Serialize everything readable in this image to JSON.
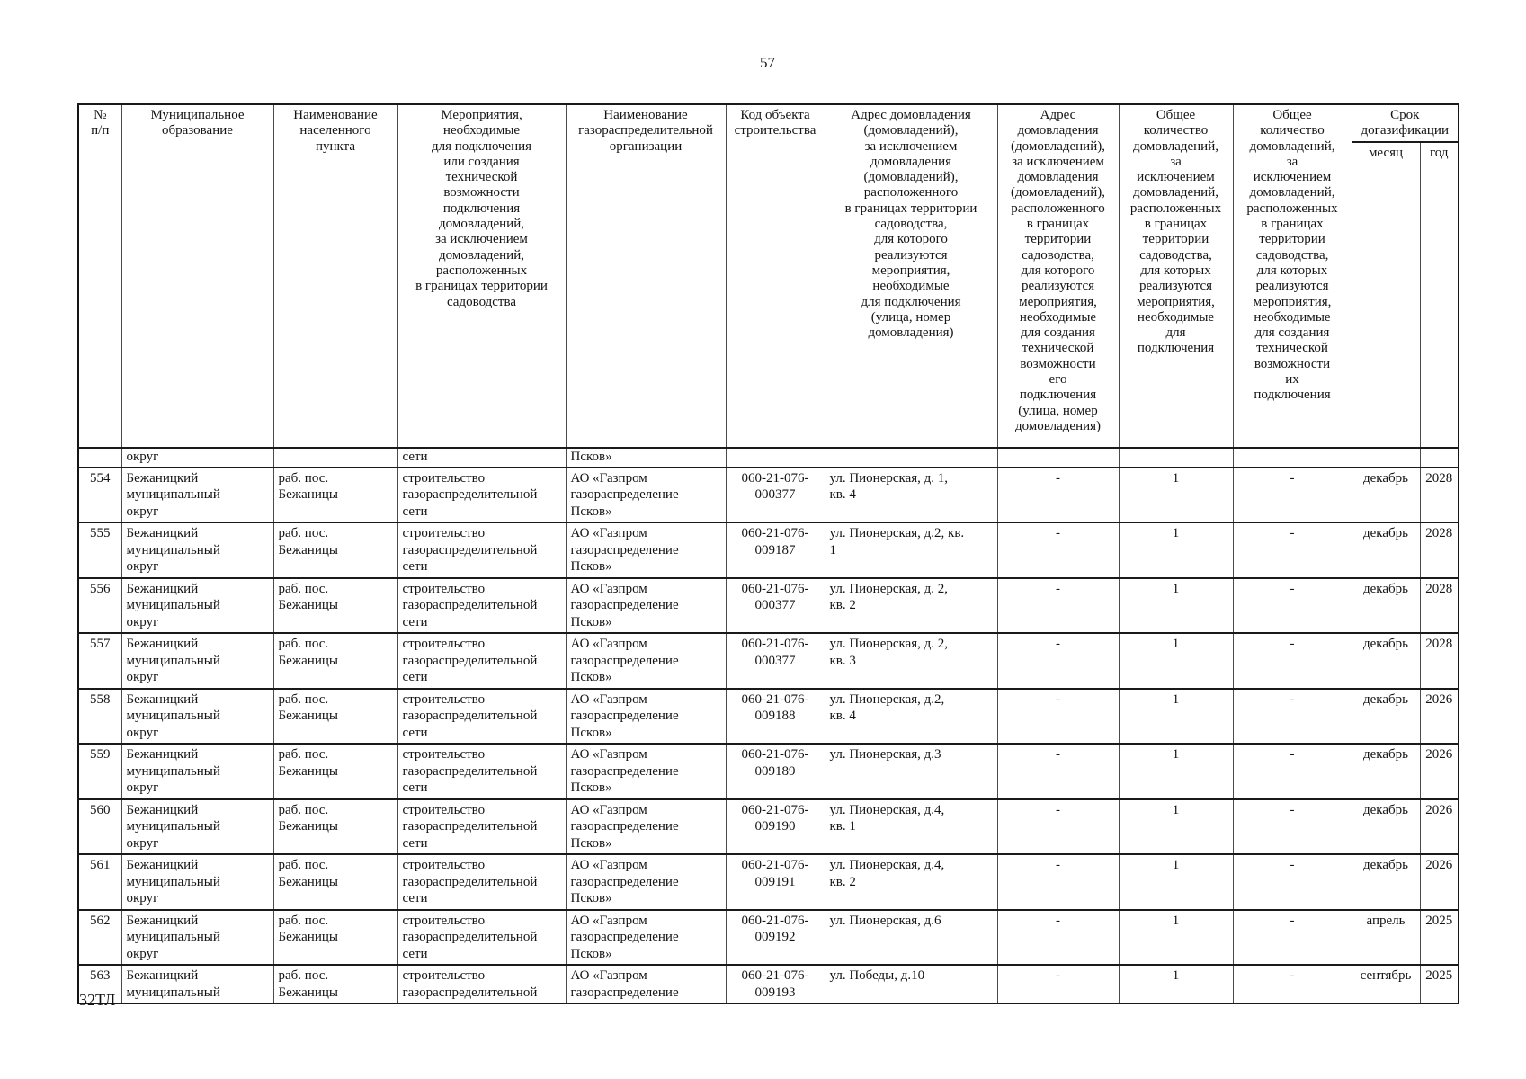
{
  "page": {
    "number": "57",
    "footer_note": "32ТЛ"
  },
  "table": {
    "columns": [
      {
        "id": "num",
        "label": "№\nп/п"
      },
      {
        "id": "municipality",
        "label": "Муниципальное\nобразование"
      },
      {
        "id": "settlement",
        "label": "Наименование\nнаселенного\nпункта"
      },
      {
        "id": "measures",
        "label": "Мероприятия,\nнеобходимые\nдля подключения\nили создания\nтехнической\nвозможности\nподключения\nдомовладений,\nза исключением\nдомовладений,\nрасположенных\nв границах территории\nсадоводства"
      },
      {
        "id": "gro-name",
        "label": "Наименование\nгазораспределительной\nорганизации"
      },
      {
        "id": "object-code",
        "label": "Код объекта\nстроительства"
      },
      {
        "id": "address-connection",
        "label": "Адрес домовладения\n(домовладений),\nза исключением\nдомовладения\n(домовладений),\nрасположенного\nв границах территории\nсадоводства,\nдля которого\nреализуются\nмероприятия,\nнеобходимые\nдля подключения\n(улица, номер\nдомовладения)"
      },
      {
        "id": "address-tech",
        "label": "Адрес\nдомовладения\n(домовладений),\nза исключением\nдомовладения\n(домовладений),\nрасположенного\nв границах\nтерритории\nсадоводства,\nдля которого\nреализуются\nмероприятия,\nнеобходимые\nдля создания\nтехнической\nвозможности\nего\nподключения\n(улица, номер\nдомовладения)"
      },
      {
        "id": "count-connection",
        "label": "Общее\nколичество\nдомовладений,\nза\nисключением\nдомовладений,\nрасположенных\nв границах\nтерритории\nсадоводства,\nдля которых\nреализуются\nмероприятия,\nнеобходимые\nдля\nподключения"
      },
      {
        "id": "count-tech",
        "label": "Общее\nколичество\nдомовладений,\nза\nисключением\nдомовладений,\nрасположенных\nв границах\nтерритории\nсадоводства,\nдля которых\nреализуются\nмероприятия,\nнеобходимые\nдля создания\nтехнической\nвозможности\nих\nподключения"
      }
    ],
    "term_group": {
      "label": "Срок\nдогазификации",
      "sub": [
        "месяц",
        "год"
      ]
    },
    "carryover_row": [
      "",
      "округ",
      "",
      "сети",
      "Псков»",
      "",
      "",
      "",
      "",
      "",
      "",
      ""
    ],
    "rows": [
      [
        "554",
        "Бежаницкий\nмуниципальный\nокруг",
        "раб. пос.\nБежаницы",
        "строительство\nгазораспределительной\nсети",
        "АО «Газпром\nгазораспределение\nПсков»",
        "060-21-076-\n000377",
        "ул. Пионерская, д. 1,\nкв. 4",
        "-",
        "1",
        "-",
        "декабрь",
        "2028"
      ],
      [
        "555",
        "Бежаницкий\nмуниципальный\nокруг",
        "раб. пос.\nБежаницы",
        "строительство\nгазораспределительной\nсети",
        "АО «Газпром\nгазораспределение\nПсков»",
        "060-21-076-\n009187",
        "ул. Пионерская, д.2, кв.\n1",
        "-",
        "1",
        "-",
        "декабрь",
        "2028"
      ],
      [
        "556",
        "Бежаницкий\nмуниципальный\nокруг",
        "раб. пос.\nБежаницы",
        "строительство\nгазораспределительной\nсети",
        "АО «Газпром\nгазораспределение\nПсков»",
        "060-21-076-\n000377",
        "ул. Пионерская, д. 2,\nкв. 2",
        "-",
        "1",
        "-",
        "декабрь",
        "2028"
      ],
      [
        "557",
        "Бежаницкий\nмуниципальный\nокруг",
        "раб. пос.\nБежаницы",
        "строительство\nгазораспределительной\nсети",
        "АО «Газпром\nгазораспределение\nПсков»",
        "060-21-076-\n000377",
        "ул. Пионерская, д. 2,\nкв. 3",
        "-",
        "1",
        "-",
        "декабрь",
        "2028"
      ],
      [
        "558",
        "Бежаницкий\nмуниципальный\nокруг",
        "раб. пос.\nБежаницы",
        "строительство\nгазораспределительной\nсети",
        "АО «Газпром\nгазораспределение\nПсков»",
        "060-21-076-\n009188",
        "ул. Пионерская, д.2,\nкв. 4",
        "-",
        "1",
        "-",
        "декабрь",
        "2026"
      ],
      [
        "559",
        "Бежаницкий\nмуниципальный\nокруг",
        "раб. пос.\nБежаницы",
        "строительство\nгазораспределительной\nсети",
        "АО «Газпром\nгазораспределение\nПсков»",
        "060-21-076-\n009189",
        "ул. Пионерская, д.3",
        "-",
        "1",
        "-",
        "декабрь",
        "2026"
      ],
      [
        "560",
        "Бежаницкий\nмуниципальный\nокруг",
        "раб. пос.\nБежаницы",
        "строительство\nгазораспределительной\nсети",
        "АО «Газпром\nгазораспределение\nПсков»",
        "060-21-076-\n009190",
        "ул. Пионерская, д.4,\nкв. 1",
        "-",
        "1",
        "-",
        "декабрь",
        "2026"
      ],
      [
        "561",
        "Бежаницкий\nмуниципальный\nокруг",
        "раб. пос.\nБежаницы",
        "строительство\nгазораспределительной\nсети",
        "АО «Газпром\nгазораспределение\nПсков»",
        "060-21-076-\n009191",
        "ул. Пионерская, д.4,\nкв. 2",
        "-",
        "1",
        "-",
        "декабрь",
        "2026"
      ],
      [
        "562",
        "Бежаницкий\nмуниципальный\nокруг",
        "раб. пос.\nБежаницы",
        "строительство\nгазораспределительной\nсети",
        "АО «Газпром\nгазораспределение\nПсков»",
        "060-21-076-\n009192",
        "ул. Пионерская, д.6",
        "-",
        "1",
        "-",
        "апрель",
        "2025"
      ],
      [
        "563",
        "Бежаницкий\nмуниципальный",
        "раб. пос.\nБежаницы",
        "строительство\nгазораспределительной",
        "АО «Газпром\nгазораспределение",
        "060-21-076-\n009193",
        "ул. Победы, д.10",
        "-",
        "1",
        "-",
        "сентябрь",
        "2025"
      ]
    ]
  }
}
